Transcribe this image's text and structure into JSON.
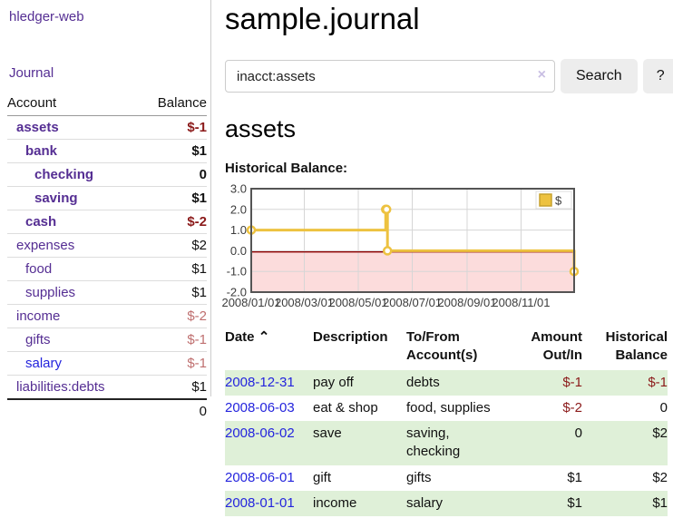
{
  "colors": {
    "link_purple": "#552e93",
    "link_blue": "#2424dd",
    "negative_strong": "#8b1a1a",
    "negative_muted": "#bf6f6f",
    "row_stripe_green": "#dff0d8",
    "chart_line": "#EDC240",
    "chart_negative_fill": "#fcdcdc",
    "chart_zero_line": "#8b0000"
  },
  "sidebar": {
    "brand": "hledger-web",
    "nav_journal": "Journal",
    "accounts_table": {
      "headers": {
        "account": "Account",
        "balance": "Balance"
      },
      "rows": [
        {
          "name": "assets",
          "balance": "$-1"
        },
        {
          "name": "bank",
          "balance": "$1"
        },
        {
          "name": "checking",
          "balance": "0"
        },
        {
          "name": "saving",
          "balance": "$1"
        },
        {
          "name": "cash",
          "balance": "$-2"
        },
        {
          "name": "expenses",
          "balance": "$2"
        },
        {
          "name": "food",
          "balance": "$1"
        },
        {
          "name": "supplies",
          "balance": "$1"
        },
        {
          "name": "income",
          "balance": "$-2"
        },
        {
          "name": "gifts",
          "balance": "$-1"
        },
        {
          "name": "salary",
          "balance": "$-1"
        },
        {
          "name": "liabilities:debts",
          "balance": "$1"
        }
      ],
      "total": "0"
    }
  },
  "main": {
    "title": "sample.journal",
    "search": {
      "value": "inacct:assets",
      "clear_icon": "×",
      "search_button": "Search",
      "help_button": "?"
    },
    "account_heading": "assets",
    "chart_heading": "Historical Balance:",
    "register_table": {
      "headers": [
        "Date",
        "Description",
        "To/From Account(s)",
        "Amount Out/In",
        "Historical Balance"
      ],
      "sort_arrow": "⌃",
      "rows": [
        {
          "date": "2008-12-31",
          "description": "pay off",
          "accounts": "debts",
          "amount": "$-1",
          "balance": "$-1"
        },
        {
          "date": "2008-06-03",
          "description": "eat & shop",
          "accounts": "food, supplies",
          "amount": "$-2",
          "balance": "0"
        },
        {
          "date": "2008-06-02",
          "description": "save",
          "accounts": "saving, checking",
          "amount": "0",
          "balance": "$2"
        },
        {
          "date": "2008-06-01",
          "description": "gift",
          "accounts": "gifts",
          "amount": "$1",
          "balance": "$2"
        },
        {
          "date": "2008-01-01",
          "description": "income",
          "accounts": "salary",
          "amount": "$1",
          "balance": "$1"
        }
      ]
    }
  },
  "chart_data": {
    "type": "line",
    "title": "Historical Balance",
    "series": [
      {
        "name": "$",
        "color": "#EDC240",
        "step": true,
        "points": [
          [
            "2008-01-01",
            1
          ],
          [
            "2008-06-01",
            2
          ],
          [
            "2008-06-02",
            2
          ],
          [
            "2008-06-03",
            0
          ],
          [
            "2008-12-31",
            -1
          ]
        ]
      }
    ],
    "x_ticks": [
      "2008/01/01",
      "2008/03/01",
      "2008/05/01",
      "2008/07/01",
      "2008/09/01",
      "2008/11/01"
    ],
    "y_ticks": [
      3.0,
      2.0,
      1.0,
      0.0,
      -1.0,
      -2.0
    ],
    "xlim": [
      "2008-01-01",
      "2008-12-31"
    ],
    "ylim": [
      -2,
      3
    ],
    "grid": true,
    "legend_position": "top-right",
    "negative_region_fill": "#fcdcdc",
    "zero_line_color": "#8b0000"
  }
}
